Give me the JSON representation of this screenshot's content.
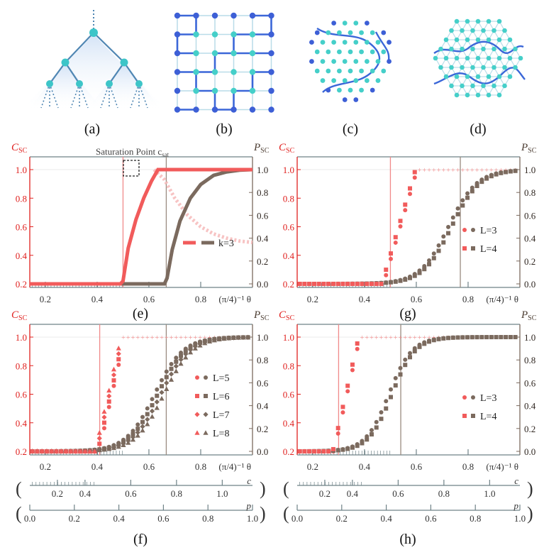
{
  "figure": {
    "panel_labels": [
      "(a)",
      "(b)",
      "(c)",
      "(d)",
      "(e)",
      "(g)",
      "(f)",
      "(h)"
    ],
    "left_axis_label": "C",
    "left_axis_sub": "SC",
    "right_axis_label": "P",
    "right_axis_sub": "SC",
    "theta_label": "(π/4)⁻¹ θ",
    "c_label": "c",
    "p_label": "p",
    "saturation_label": "Saturation Point c",
    "saturation_sub": "sat"
  },
  "colors": {
    "csc": "#f15b5b",
    "csc_axis": "#e0201e",
    "psc": "#7b6a5e",
    "axis": "#6f8287",
    "tree_node": "#3dc5c8",
    "tree_edge": "#4f86b3",
    "blue_node": "#3d5fd6",
    "cyan_node": "#45cfc9"
  },
  "chart_data": [
    {
      "panel": "(e)",
      "type": "line",
      "legend": [
        "k=3"
      ],
      "x_ticks": [
        "0.2",
        "0.4",
        "0.6",
        "0.8"
      ],
      "xlim": [
        0.14,
        1.0
      ],
      "left_ticks": [
        "0.2",
        "0.4",
        "0.6",
        "0.8",
        "1.0"
      ],
      "right_ticks": [
        "0.0",
        "0.2",
        "0.4",
        "0.6",
        "0.8",
        "1.0"
      ],
      "ylim_csc": [
        0.2,
        1.0
      ],
      "ylim_psc": [
        0.0,
        1.0
      ],
      "v_red": 0.5,
      "v_brown": 0.667,
      "csc_curve": [
        [
          0.14,
          0.2
        ],
        [
          0.49,
          0.2
        ],
        [
          0.5,
          0.22
        ],
        [
          0.52,
          0.45
        ],
        [
          0.55,
          0.65
        ],
        [
          0.58,
          0.8
        ],
        [
          0.61,
          0.92
        ],
        [
          0.635,
          1.0
        ],
        [
          1.0,
          1.0
        ]
      ],
      "csc_faded": [
        [
          0.62,
          1.0
        ],
        [
          0.66,
          0.93
        ],
        [
          0.7,
          0.8
        ],
        [
          0.75,
          0.68
        ],
        [
          0.8,
          0.6
        ],
        [
          0.85,
          0.55
        ],
        [
          0.9,
          0.52
        ],
        [
          0.95,
          0.5
        ],
        [
          1.0,
          0.49
        ]
      ],
      "psc_curve": [
        [
          0.14,
          0.0
        ],
        [
          0.66,
          0.0
        ],
        [
          0.67,
          0.05
        ],
        [
          0.69,
          0.3
        ],
        [
          0.72,
          0.55
        ],
        [
          0.76,
          0.75
        ],
        [
          0.8,
          0.87
        ],
        [
          0.85,
          0.95
        ],
        [
          0.9,
          0.98
        ],
        [
          0.95,
          0.995
        ],
        [
          1.0,
          1.0
        ]
      ]
    },
    {
      "panel": "(g)",
      "type": "scatter",
      "legend": [
        "L=3",
        "L=4"
      ],
      "x_ticks": [
        "0.2",
        "0.4",
        "0.6",
        "0.8"
      ],
      "xlim": [
        0.14,
        1.0
      ],
      "left_ticks": [
        "0.2",
        "0.4",
        "0.6",
        "0.8",
        "1.0"
      ],
      "right_ticks": [
        "0.0",
        "0.2",
        "0.4",
        "0.6",
        "0.8",
        "1.0"
      ],
      "ylim_csc": [
        0.2,
        1.0
      ],
      "ylim_psc": [
        0.0,
        1.0
      ],
      "v_red": 0.5,
      "v_brown": 0.77,
      "csc_onset": 0.47,
      "csc_sat": 0.6,
      "psc_center": 0.73,
      "psc_width": 0.055
    },
    {
      "panel": "(f)",
      "type": "scatter",
      "legend": [
        "L=5",
        "L=6",
        "L=7",
        "L=8"
      ],
      "x_ticks": [
        "0.2",
        "0.4",
        "0.6",
        "0.8"
      ],
      "xlim": [
        0.14,
        1.0
      ],
      "left_ticks": [
        "0.2",
        "0.4",
        "0.6",
        "0.8",
        "1.0"
      ],
      "right_ticks": [
        "0.0",
        "0.2",
        "0.4",
        "0.6",
        "0.8",
        "1.0"
      ],
      "ylim_csc": [
        0.2,
        1.0
      ],
      "ylim_psc": [
        0.0,
        1.0
      ],
      "v_red": 0.41,
      "v_brown": 0.667,
      "csc_onset": 0.4,
      "csc_sat": 0.5,
      "psc_center": 0.64,
      "psc_width": 0.055,
      "c_ticks": [
        "0.2",
        "0.4",
        "0.6",
        "0.8",
        "1.0"
      ],
      "p_ticks": [
        "0.0",
        "0.2",
        "0.4",
        "0.6",
        "0.8",
        "1.0"
      ]
    },
    {
      "panel": "(h)",
      "type": "scatter",
      "legend": [
        "L=3",
        "L=4"
      ],
      "x_ticks": [
        "0.2",
        "0.4",
        "0.6",
        "0.8"
      ],
      "xlim": [
        0.14,
        1.0
      ],
      "left_ticks": [
        "0.2",
        "0.4",
        "0.6",
        "0.8",
        "1.0"
      ],
      "right_ticks": [
        "0.0",
        "0.2",
        "0.4",
        "0.6",
        "0.8",
        "1.0"
      ],
      "ylim_csc": [
        0.2,
        1.0
      ],
      "ylim_psc": [
        0.0,
        1.0
      ],
      "v_red": 0.3,
      "v_brown": 0.54,
      "csc_onset": 0.28,
      "csc_sat": 0.38,
      "psc_center": 0.5,
      "psc_width": 0.045,
      "c_ticks": [
        "0.2",
        "0.4",
        "0.6",
        "0.8",
        "1.0"
      ],
      "p_ticks": [
        "0.0",
        "0.2",
        "0.4",
        "0.6",
        "0.8",
        "1.0"
      ]
    }
  ]
}
